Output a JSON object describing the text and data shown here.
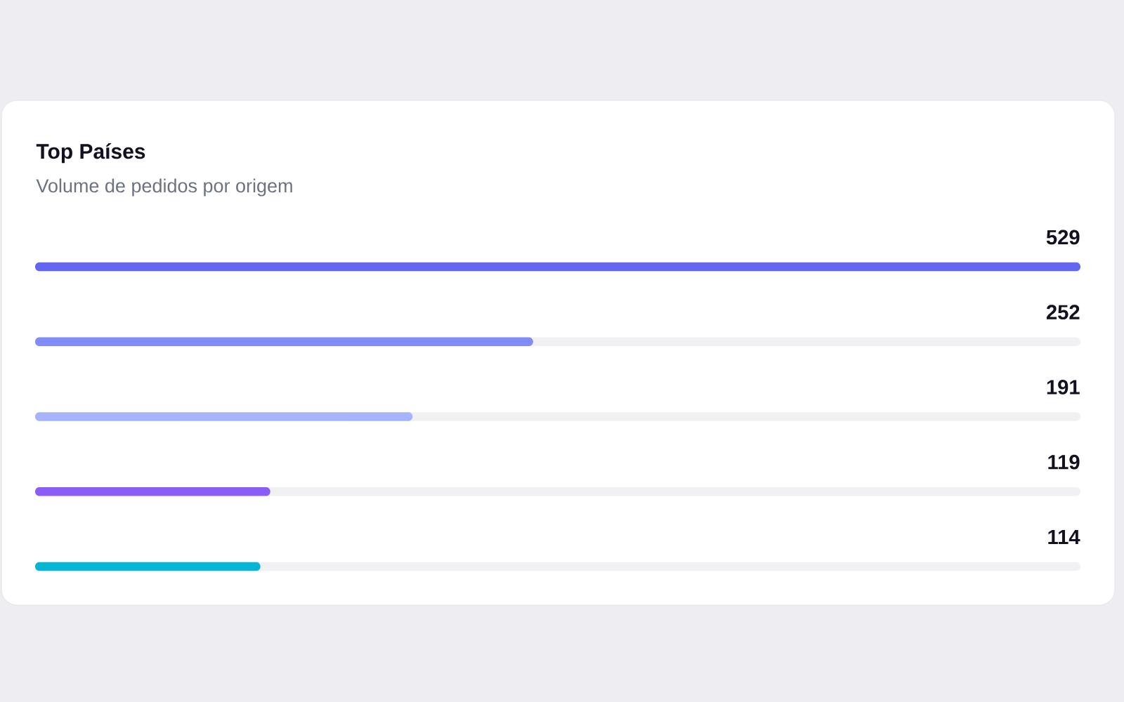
{
  "chart_data": {
    "type": "bar",
    "orientation": "horizontal",
    "title": "Top Países",
    "subtitle": "Volume de pedidos por origem",
    "categories": [
      null,
      null,
      null,
      null,
      null
    ],
    "values": [
      529,
      252,
      191,
      119,
      114
    ],
    "colors": [
      "#6366f1",
      "#818cf8",
      "#a5b4fc",
      "#8b5cf6",
      "#06b6d4"
    ],
    "xlim": [
      0,
      529
    ],
    "data_labels": true
  }
}
